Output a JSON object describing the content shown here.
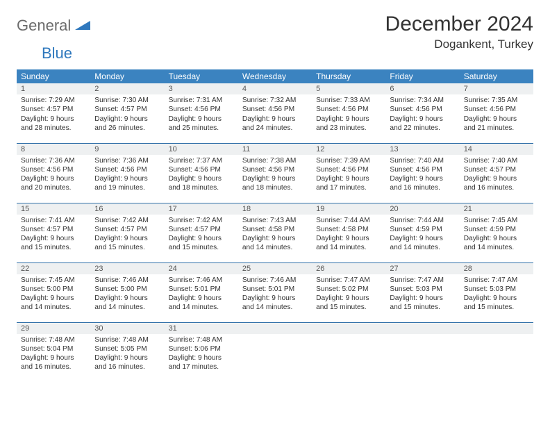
{
  "logo": {
    "text1": "General",
    "text2": "Blue"
  },
  "title": "December 2024",
  "location": "Dogankent, Turkey",
  "colors": {
    "header_bg": "#3b83c0",
    "header_text": "#ffffff",
    "daynum_bg": "#eef0f1",
    "border": "#2f6fa8",
    "logo_gray": "#6b6b6b",
    "logo_blue": "#2f78bd"
  },
  "weekdays": [
    "Sunday",
    "Monday",
    "Tuesday",
    "Wednesday",
    "Thursday",
    "Friday",
    "Saturday"
  ],
  "grid": [
    [
      {
        "n": "1",
        "sr": "Sunrise: 7:29 AM",
        "ss": "Sunset: 4:57 PM",
        "d1": "Daylight: 9 hours",
        "d2": "and 28 minutes."
      },
      {
        "n": "2",
        "sr": "Sunrise: 7:30 AM",
        "ss": "Sunset: 4:57 PM",
        "d1": "Daylight: 9 hours",
        "d2": "and 26 minutes."
      },
      {
        "n": "3",
        "sr": "Sunrise: 7:31 AM",
        "ss": "Sunset: 4:56 PM",
        "d1": "Daylight: 9 hours",
        "d2": "and 25 minutes."
      },
      {
        "n": "4",
        "sr": "Sunrise: 7:32 AM",
        "ss": "Sunset: 4:56 PM",
        "d1": "Daylight: 9 hours",
        "d2": "and 24 minutes."
      },
      {
        "n": "5",
        "sr": "Sunrise: 7:33 AM",
        "ss": "Sunset: 4:56 PM",
        "d1": "Daylight: 9 hours",
        "d2": "and 23 minutes."
      },
      {
        "n": "6",
        "sr": "Sunrise: 7:34 AM",
        "ss": "Sunset: 4:56 PM",
        "d1": "Daylight: 9 hours",
        "d2": "and 22 minutes."
      },
      {
        "n": "7",
        "sr": "Sunrise: 7:35 AM",
        "ss": "Sunset: 4:56 PM",
        "d1": "Daylight: 9 hours",
        "d2": "and 21 minutes."
      }
    ],
    [
      {
        "n": "8",
        "sr": "Sunrise: 7:36 AM",
        "ss": "Sunset: 4:56 PM",
        "d1": "Daylight: 9 hours",
        "d2": "and 20 minutes."
      },
      {
        "n": "9",
        "sr": "Sunrise: 7:36 AM",
        "ss": "Sunset: 4:56 PM",
        "d1": "Daylight: 9 hours",
        "d2": "and 19 minutes."
      },
      {
        "n": "10",
        "sr": "Sunrise: 7:37 AM",
        "ss": "Sunset: 4:56 PM",
        "d1": "Daylight: 9 hours",
        "d2": "and 18 minutes."
      },
      {
        "n": "11",
        "sr": "Sunrise: 7:38 AM",
        "ss": "Sunset: 4:56 PM",
        "d1": "Daylight: 9 hours",
        "d2": "and 18 minutes."
      },
      {
        "n": "12",
        "sr": "Sunrise: 7:39 AM",
        "ss": "Sunset: 4:56 PM",
        "d1": "Daylight: 9 hours",
        "d2": "and 17 minutes."
      },
      {
        "n": "13",
        "sr": "Sunrise: 7:40 AM",
        "ss": "Sunset: 4:56 PM",
        "d1": "Daylight: 9 hours",
        "d2": "and 16 minutes."
      },
      {
        "n": "14",
        "sr": "Sunrise: 7:40 AM",
        "ss": "Sunset: 4:57 PM",
        "d1": "Daylight: 9 hours",
        "d2": "and 16 minutes."
      }
    ],
    [
      {
        "n": "15",
        "sr": "Sunrise: 7:41 AM",
        "ss": "Sunset: 4:57 PM",
        "d1": "Daylight: 9 hours",
        "d2": "and 15 minutes."
      },
      {
        "n": "16",
        "sr": "Sunrise: 7:42 AM",
        "ss": "Sunset: 4:57 PM",
        "d1": "Daylight: 9 hours",
        "d2": "and 15 minutes."
      },
      {
        "n": "17",
        "sr": "Sunrise: 7:42 AM",
        "ss": "Sunset: 4:57 PM",
        "d1": "Daylight: 9 hours",
        "d2": "and 15 minutes."
      },
      {
        "n": "18",
        "sr": "Sunrise: 7:43 AM",
        "ss": "Sunset: 4:58 PM",
        "d1": "Daylight: 9 hours",
        "d2": "and 14 minutes."
      },
      {
        "n": "19",
        "sr": "Sunrise: 7:44 AM",
        "ss": "Sunset: 4:58 PM",
        "d1": "Daylight: 9 hours",
        "d2": "and 14 minutes."
      },
      {
        "n": "20",
        "sr": "Sunrise: 7:44 AM",
        "ss": "Sunset: 4:59 PM",
        "d1": "Daylight: 9 hours",
        "d2": "and 14 minutes."
      },
      {
        "n": "21",
        "sr": "Sunrise: 7:45 AM",
        "ss": "Sunset: 4:59 PM",
        "d1": "Daylight: 9 hours",
        "d2": "and 14 minutes."
      }
    ],
    [
      {
        "n": "22",
        "sr": "Sunrise: 7:45 AM",
        "ss": "Sunset: 5:00 PM",
        "d1": "Daylight: 9 hours",
        "d2": "and 14 minutes."
      },
      {
        "n": "23",
        "sr": "Sunrise: 7:46 AM",
        "ss": "Sunset: 5:00 PM",
        "d1": "Daylight: 9 hours",
        "d2": "and 14 minutes."
      },
      {
        "n": "24",
        "sr": "Sunrise: 7:46 AM",
        "ss": "Sunset: 5:01 PM",
        "d1": "Daylight: 9 hours",
        "d2": "and 14 minutes."
      },
      {
        "n": "25",
        "sr": "Sunrise: 7:46 AM",
        "ss": "Sunset: 5:01 PM",
        "d1": "Daylight: 9 hours",
        "d2": "and 14 minutes."
      },
      {
        "n": "26",
        "sr": "Sunrise: 7:47 AM",
        "ss": "Sunset: 5:02 PM",
        "d1": "Daylight: 9 hours",
        "d2": "and 15 minutes."
      },
      {
        "n": "27",
        "sr": "Sunrise: 7:47 AM",
        "ss": "Sunset: 5:03 PM",
        "d1": "Daylight: 9 hours",
        "d2": "and 15 minutes."
      },
      {
        "n": "28",
        "sr": "Sunrise: 7:47 AM",
        "ss": "Sunset: 5:03 PM",
        "d1": "Daylight: 9 hours",
        "d2": "and 15 minutes."
      }
    ],
    [
      {
        "n": "29",
        "sr": "Sunrise: 7:48 AM",
        "ss": "Sunset: 5:04 PM",
        "d1": "Daylight: 9 hours",
        "d2": "and 16 minutes."
      },
      {
        "n": "30",
        "sr": "Sunrise: 7:48 AM",
        "ss": "Sunset: 5:05 PM",
        "d1": "Daylight: 9 hours",
        "d2": "and 16 minutes."
      },
      {
        "n": "31",
        "sr": "Sunrise: 7:48 AM",
        "ss": "Sunset: 5:06 PM",
        "d1": "Daylight: 9 hours",
        "d2": "and 17 minutes."
      },
      null,
      null,
      null,
      null
    ]
  ]
}
